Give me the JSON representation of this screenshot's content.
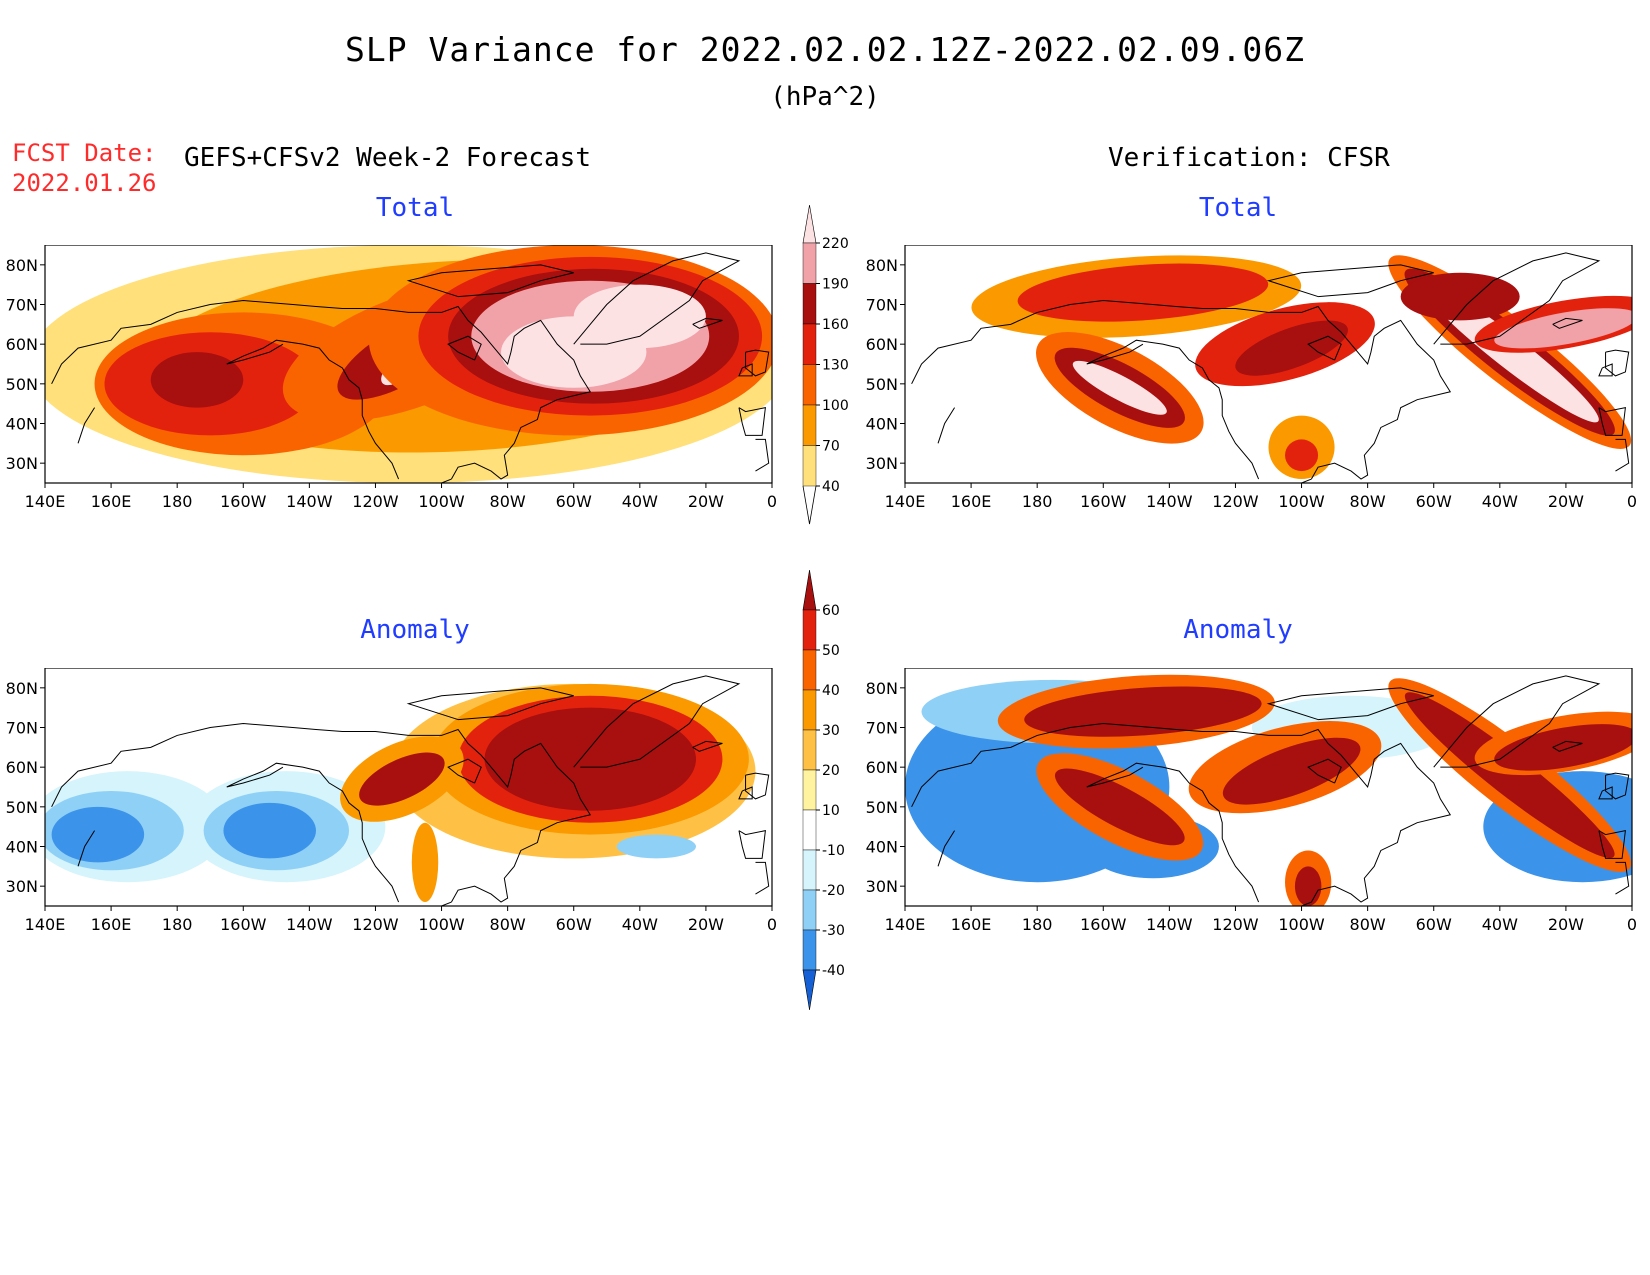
{
  "header": {
    "title": "SLP Variance for 2022.02.02.12Z-2022.02.09.06Z",
    "units": "(hPa^2)",
    "fcst_label_line1": "FCST Date:",
    "fcst_label_line2": "2022.01.26",
    "forecast_subtitle": "GEFS+CFSv2 Week-2 Forecast",
    "verification_subtitle": "Verification: CFSR"
  },
  "panels": {
    "forecast_total_title": "Total",
    "verification_total_title": "Total",
    "forecast_anomaly_title": "Anomaly",
    "verification_anomaly_title": "Anomaly"
  },
  "axes": {
    "lat_labels": [
      "80N",
      "70N",
      "60N",
      "50N",
      "40N",
      "30N"
    ],
    "lon_labels": [
      "140E",
      "160E",
      "180",
      "160W",
      "140W",
      "120W",
      "100W",
      "80W",
      "60W",
      "40W",
      "20W",
      "0"
    ],
    "lat_range": [
      25,
      85
    ],
    "lon_range_deg_east": [
      140,
      360
    ]
  },
  "colorbars": {
    "total": {
      "labels": [
        "220",
        "190",
        "160",
        "130",
        "100",
        "70",
        "40"
      ],
      "colors": [
        "#fde2e4",
        "#f0a2a8",
        "#a80f0f",
        "#e3220e",
        "#fa6400",
        "#fb9a00",
        "#ffe07a"
      ]
    },
    "anomaly": {
      "labels": [
        "60",
        "50",
        "40",
        "30",
        "20",
        "10",
        "-10",
        "-20",
        "-30",
        "-40"
      ],
      "colors": [
        "#a80f0f",
        "#e3220e",
        "#fa6400",
        "#fb9a00",
        "#ffc145",
        "#fff3a0",
        "#ffffff",
        "#d5f4fc",
        "#8fd0f6",
        "#3c93ea",
        "#1560d4"
      ]
    }
  }
}
